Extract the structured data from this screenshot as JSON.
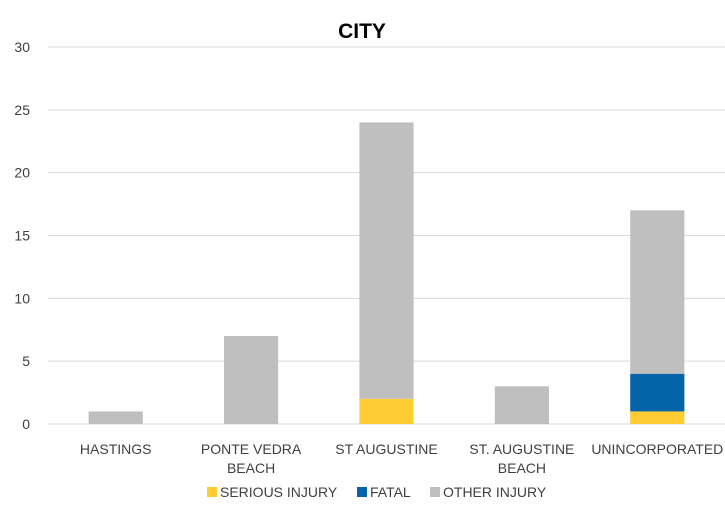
{
  "chart_data": {
    "type": "bar",
    "stacked": true,
    "title": "CITY",
    "xlabel": "",
    "ylabel": "",
    "categories": [
      [
        "HASTINGS"
      ],
      [
        "PONTE VEDRA",
        "BEACH"
      ],
      [
        "ST AUGUSTINE"
      ],
      [
        "ST. AUGUSTINE",
        "BEACH"
      ],
      [
        "UNINCORPORATED"
      ]
    ],
    "series": [
      {
        "name": "SERIOUS INJURY",
        "color": "#FFCC33",
        "values": [
          0,
          0,
          2,
          0,
          1
        ]
      },
      {
        "name": "FATAL",
        "color": "#0563A9",
        "values": [
          0,
          0,
          0,
          0,
          3
        ]
      },
      {
        "name": "OTHER INJURY",
        "color": "#BFBFBF",
        "values": [
          1,
          7,
          22,
          3,
          13
        ]
      }
    ],
    "ylim": [
      0,
      30
    ],
    "yticks": [
      "0",
      "5",
      "10",
      "15",
      "20",
      "25",
      "30"
    ],
    "grid": true,
    "legend_position": "bottom"
  }
}
